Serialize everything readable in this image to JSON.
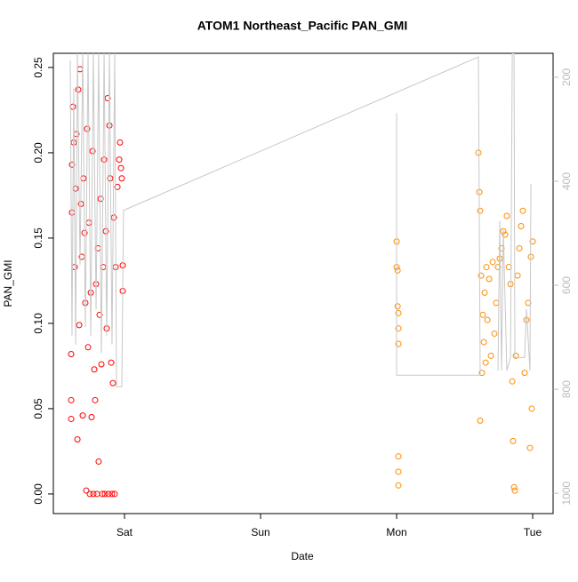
{
  "chart_data": {
    "type": "scatter",
    "title": "ATOM1 Northeast_Pacific PAN_GMI",
    "x_label": "Date",
    "y_label": "PAN_GMI",
    "xlim": [
      -0.523,
      3.15
    ],
    "xticks": [
      {
        "value": 0,
        "label": "Sat"
      },
      {
        "value": 1,
        "label": "Sun"
      },
      {
        "value": 2,
        "label": "Mon"
      },
      {
        "value": 3,
        "label": "Tue"
      }
    ],
    "ylim": [
      -0.0115,
      0.2583
    ],
    "yticks": [
      {
        "value": 0,
        "label": "0.00"
      },
      {
        "value": 0.05,
        "label": "0.05"
      },
      {
        "value": 0.1,
        "label": "0.10"
      },
      {
        "value": 0.15,
        "label": "0.15"
      },
      {
        "value": 0.2,
        "label": "0.20"
      },
      {
        "value": 0.25,
        "label": "0.25"
      }
    ],
    "y2lim": [
      1039,
      154
    ],
    "y2ticks": [
      200,
      400,
      600,
      800,
      1000
    ],
    "y2color": "#bbbbbb",
    "series": [
      {
        "color": "#ff0000",
        "x": [
          -0.392,
          -0.392,
          -0.392,
          -0.386,
          -0.386,
          -0.379,
          -0.373,
          -0.366,
          -0.359,
          -0.353,
          -0.346,
          -0.34,
          -0.333,
          -0.327,
          -0.32,
          -0.314,
          -0.307,
          -0.301,
          -0.294,
          -0.288,
          -0.281,
          -0.275,
          -0.268,
          -0.261,
          -0.255,
          -0.248,
          -0.242,
          -0.235,
          -0.229,
          -0.222,
          -0.216,
          -0.209,
          -0.203,
          -0.196,
          -0.19,
          -0.183,
          -0.176,
          -0.17,
          -0.163,
          -0.157,
          -0.15,
          -0.144,
          -0.137,
          -0.131,
          -0.124,
          -0.118,
          -0.111,
          -0.105,
          -0.098,
          -0.092,
          -0.085,
          -0.078,
          -0.072,
          -0.065,
          -0.052,
          -0.039,
          -0.033,
          -0.026,
          -0.02,
          -0.013,
          -0.013
        ],
        "values": [
          0.082,
          0.044,
          0.055,
          0.193,
          0.165,
          0.227,
          0.206,
          0.133,
          0.179,
          0.211,
          0.032,
          0.237,
          0.099,
          0.249,
          0.17,
          0.139,
          0.046,
          0.185,
          0.153,
          0.112,
          0.002,
          0.214,
          0.086,
          0.159,
          0,
          0.118,
          0.045,
          0.201,
          0,
          0.073,
          0.055,
          0.123,
          0,
          0.144,
          0.019,
          0.105,
          0.173,
          0.076,
          0,
          0.133,
          0.196,
          0,
          0.154,
          0.097,
          0.232,
          0,
          0.216,
          0.185,
          0.077,
          0,
          0.065,
          0.162,
          0,
          0.133,
          0.18,
          0.196,
          0.206,
          0.191,
          0.185,
          0.119,
          0.134
        ]
      },
      {
        "color": "#ff8c00",
        "x": [
          2,
          2,
          2.007,
          2.007,
          2.013,
          2.013,
          2.013,
          2.013,
          2.013,
          2.013,
          2.601,
          2.608,
          2.614,
          2.614,
          2.621,
          2.627,
          2.634,
          2.641,
          2.647,
          2.654,
          2.66,
          2.667,
          2.68,
          2.693,
          2.706,
          2.719,
          2.732,
          2.745,
          2.758,
          2.771,
          2.784,
          2.797,
          2.81,
          2.824,
          2.837,
          2.85,
          2.856,
          2.863,
          2.869,
          2.876,
          2.889,
          2.902,
          2.915,
          2.928,
          2.941,
          2.954,
          2.967,
          2.98,
          2.987,
          2.993,
          3
        ],
        "values": [
          0.148,
          0.133,
          0.131,
          0.11,
          0.106,
          0.097,
          0.088,
          0.022,
          0.013,
          0.005,
          0.2,
          0.177,
          0.166,
          0.043,
          0.128,
          0.071,
          0.105,
          0.089,
          0.118,
          0.077,
          0.133,
          0.102,
          0.126,
          0.081,
          0.136,
          0.094,
          0.112,
          0.133,
          0.138,
          0.144,
          0.154,
          0.152,
          0.163,
          0.133,
          0.123,
          0.066,
          0.031,
          0.004,
          0.002,
          0.081,
          0.128,
          0.144,
          0.157,
          0.166,
          0.071,
          0.102,
          0.112,
          0.027,
          0.139,
          0.05,
          0.148
        ]
      },
      {
        "type": "line",
        "axis": "y2",
        "color": "#c8c8c8",
        "x": [
          -0.399,
          -0.386,
          -0.373,
          -0.359,
          -0.346,
          -0.327,
          -0.307,
          -0.288,
          -0.268,
          -0.248,
          -0.229,
          -0.209,
          -0.19,
          -0.17,
          -0.15,
          -0.131,
          -0.111,
          -0.092,
          -0.072,
          -0.059,
          -0.039,
          -0.02,
          -0.007,
          2.601,
          2.614,
          2,
          2,
          null,
          2.745,
          2.758,
          2.771,
          2.784,
          2.81,
          2.837,
          2.85,
          2.863,
          2.869,
          2.941,
          2.954,
          2.98,
          2.987
        ],
        "values": [
          168,
          697,
          222,
          714,
          154,
          561,
          154,
          680,
          154,
          697,
          154,
          646,
          154,
          731,
          154,
          697,
          154,
          714,
          154,
          795,
          795,
          795,
          456,
          161,
          773,
          773,
          269,
          null,
          764,
          476,
          764,
          493,
          764,
          739,
          154,
          154,
          739,
          739,
          646,
          764,
          405
        ]
      }
    ]
  }
}
